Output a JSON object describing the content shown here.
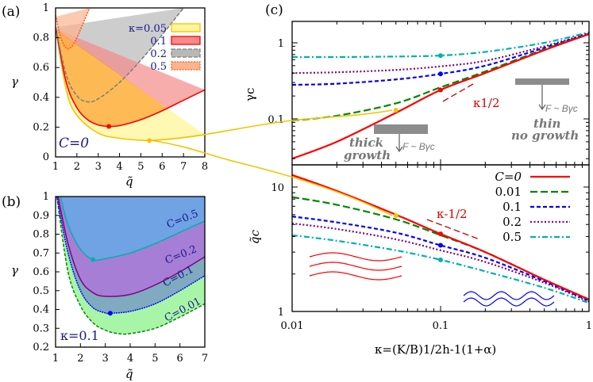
{
  "panels": {
    "a": "(a)",
    "b": "(b)",
    "c": "(c)"
  },
  "chart_data": [
    {
      "type": "area",
      "panel": "(a)",
      "xlabel": "q̃",
      "ylabel": "γ",
      "xlim": [
        1,
        8
      ],
      "ylim": [
        0,
        1
      ],
      "xticks": [
        "1",
        "2",
        "3",
        "4",
        "5",
        "6",
        "7",
        "8"
      ],
      "yticks": [
        "0",
        "0.2",
        "0.4",
        "0.6",
        "0.8",
        "1"
      ],
      "annotation": "C=0",
      "legend_title": "κ=",
      "legend_placement": "top-right",
      "series": [
        {
          "name": "κ=0.05",
          "color": "#f5c400",
          "fill": "#fff59a",
          "q": [
            1,
            1.5,
            2,
            3,
            4,
            5,
            5.4,
            6,
            7,
            8
          ],
          "gamma": [
            0.87,
            0.45,
            0.28,
            0.16,
            0.125,
            0.112,
            0.11,
            0.115,
            0.13,
            0.15
          ],
          "upper": [
            [
              1,
              0.85
            ],
            [
              8,
              0.15
            ]
          ],
          "minimum": [
            5.4,
            0.11
          ]
        },
        {
          "name": "0.1",
          "color": "#ff0000",
          "fill": "#f58a8a",
          "q": [
            1,
            1.5,
            2,
            2.5,
            3,
            3.5,
            4,
            5,
            6,
            7,
            8
          ],
          "gamma": [
            0.87,
            0.5,
            0.33,
            0.25,
            0.215,
            0.205,
            0.21,
            0.25,
            0.31,
            0.38,
            0.45
          ],
          "upper": [
            [
              1,
              0.86
            ],
            [
              8,
              0.45
            ]
          ],
          "minimum": [
            3.5,
            0.205
          ]
        },
        {
          "name": "0.2",
          "color": "#808080",
          "fill": "#b8b8b8",
          "q": [
            1,
            1.5,
            2,
            2.5,
            3,
            4,
            5,
            6,
            7
          ],
          "gamma": [
            0.87,
            0.55,
            0.41,
            0.37,
            0.39,
            0.5,
            0.65,
            0.82,
            1.0
          ],
          "upper": [
            [
              1,
              0.87
            ],
            [
              7,
              1.0
            ]
          ]
        },
        {
          "name": "0.5",
          "color": "#ff5a1a",
          "fill": "#fbb48f",
          "q": [
            1,
            1.25,
            1.5,
            1.75,
            2,
            2.3,
            2.6
          ],
          "gamma": [
            0.95,
            0.8,
            0.73,
            0.74,
            0.8,
            0.9,
            1.0
          ],
          "upper": [
            [
              1,
              0.94
            ],
            [
              2.6,
              1.0
            ]
          ]
        }
      ]
    },
    {
      "type": "area",
      "panel": "(b)",
      "xlabel": "q̃",
      "ylabel": "γ",
      "xlim": [
        1,
        7
      ],
      "ylim": [
        0.2,
        1
      ],
      "xticks": [
        "1",
        "2",
        "3",
        "4",
        "5",
        "6",
        "7"
      ],
      "yticks": [
        "0.2",
        "0.3",
        "0.4",
        "0.5",
        "0.6",
        "0.7",
        "0.8",
        "0.9",
        "1"
      ],
      "annotation": "κ=0.1",
      "series": [
        {
          "name": "C=0.01",
          "color": "#008800",
          "fill": "#a8f5a8",
          "q": [
            1.05,
            1.5,
            2,
            2.5,
            3,
            3.5,
            4,
            5,
            6,
            7
          ],
          "gamma": [
            1,
            0.6,
            0.42,
            0.33,
            0.29,
            0.272,
            0.272,
            0.3,
            0.36,
            0.43
          ]
        },
        {
          "name": "C=0.1",
          "color": "#0000ff",
          "fill": "#7faac0",
          "q": [
            1.05,
            1.5,
            2,
            2.5,
            3,
            3.2,
            4,
            5,
            6,
            7
          ],
          "gamma": [
            1,
            0.7,
            0.5,
            0.41,
            0.382,
            0.38,
            0.39,
            0.43,
            0.5,
            0.58
          ],
          "minimum": [
            3.2,
            0.38
          ]
        },
        {
          "name": "C=0.2",
          "color": "#800080",
          "fill": "#a67ed6",
          "q": [
            1.1,
            1.5,
            2,
            2.5,
            3,
            4,
            5,
            6,
            7
          ],
          "gamma": [
            1,
            0.75,
            0.56,
            0.49,
            0.47,
            0.48,
            0.53,
            0.6,
            0.68
          ]
        },
        {
          "name": "C=0.5",
          "color": "#00b0b0",
          "fill": "#6fa3e3",
          "q": [
            1.2,
            1.5,
            2,
            2.5,
            3,
            4,
            5,
            6,
            7
          ],
          "gamma": [
            1,
            0.85,
            0.72,
            0.665,
            0.67,
            0.7,
            0.75,
            0.81,
            0.87
          ],
          "minimum": [
            2.5,
            0.665
          ]
        }
      ]
    },
    {
      "type": "line",
      "panel": "(c) top",
      "xscale": "log",
      "yscale": "log",
      "ylabel": "γc",
      "xlim": [
        0.01,
        1
      ],
      "ylim": [
        0.025,
        1.9
      ],
      "yticks": [
        "0.1",
        "1"
      ],
      "annotations": [
        "κ^1/2",
        "thick growth",
        "thin no growth",
        "F~Bγc"
      ],
      "x": [
        0.01,
        0.02,
        0.05,
        0.1,
        0.2,
        0.5,
        1
      ],
      "series": [
        {
          "name": "C=0",
          "color": "#ff0000",
          "dash": "solid",
          "values": [
            0.03,
            0.05,
            0.12,
            0.24,
            0.4,
            0.8,
            1.3
          ]
        },
        {
          "name": "0.01",
          "color": "#008800",
          "dash": "long-dash",
          "values": [
            0.095,
            0.11,
            0.16,
            0.26,
            0.42,
            0.82,
            1.3
          ]
        },
        {
          "name": "0.1",
          "color": "#0000ff",
          "dash": "short-dash",
          "values": [
            0.28,
            0.29,
            0.33,
            0.39,
            0.5,
            0.86,
            1.32
          ]
        },
        {
          "name": "0.2",
          "color": "#800080",
          "dash": "dotted",
          "values": [
            0.4,
            0.41,
            0.44,
            0.49,
            0.58,
            0.9,
            1.34
          ]
        },
        {
          "name": "0.5",
          "color": "#00b0b0",
          "dash": "dash-dot",
          "values": [
            0.65,
            0.65,
            0.66,
            0.68,
            0.76,
            1.0,
            1.38
          ]
        }
      ]
    },
    {
      "type": "line",
      "panel": "(c) bottom",
      "xscale": "log",
      "yscale": "log",
      "xlabel": "κ=(K/B)^1/2 h^-1(1+α)",
      "ylabel": "q̃c",
      "xlim": [
        0.01,
        1
      ],
      "ylim": [
        1,
        15
      ],
      "xticks": [
        "0.01",
        "0.1",
        "1"
      ],
      "yticks": [
        "1",
        "10"
      ],
      "annotations": [
        "κ^-1/2"
      ],
      "legend_placement": "top-right",
      "x": [
        0.01,
        0.02,
        0.05,
        0.1,
        0.2,
        0.5,
        1
      ],
      "series": [
        {
          "name": "C=0",
          "color": "#ff0000",
          "dash": "solid",
          "values": [
            12.5,
            9.3,
            6.0,
            4.2,
            3.0,
            1.8,
            1.25
          ]
        },
        {
          "name": "0.01",
          "color": "#008800",
          "dash": "long-dash",
          "values": [
            8.3,
            7.2,
            5.5,
            4.1,
            3.0,
            1.8,
            1.25
          ]
        },
        {
          "name": "0.1",
          "color": "#0000ff",
          "dash": "short-dash",
          "values": [
            5.8,
            5.2,
            4.3,
            3.4,
            2.7,
            1.75,
            1.22
          ]
        },
        {
          "name": "0.2",
          "color": "#800080",
          "dash": "dotted",
          "values": [
            5.1,
            4.6,
            3.8,
            3.1,
            2.5,
            1.7,
            1.2
          ]
        },
        {
          "name": "0.5",
          "color": "#00b0b0",
          "dash": "dash-dot",
          "values": [
            4.1,
            3.7,
            3.1,
            2.6,
            2.1,
            1.55,
            1.17
          ]
        }
      ]
    }
  ],
  "text": {
    "a_anno": "C=0",
    "b_anno": "κ=0.1",
    "a_legend": [
      "κ=0.05",
      "0.1",
      "0.2",
      "0.5"
    ],
    "b_labels": [
      "C=0.5",
      "C=0.2",
      "C=0.1",
      "C=0.01"
    ],
    "q_label": "q̃",
    "gamma_label": "γ",
    "gc_label": "γc",
    "qc_label": "q̃c",
    "k_half": "κ1/2",
    "k_mhalf": "κ-1/2",
    "thick": "thick",
    "growth": "growth",
    "thin": "thin",
    "no_growth": "no growth",
    "force": "F ~ Bγc",
    "c_legend": [
      "C=0",
      "0.01",
      "0.1",
      "0.2",
      "0.5"
    ],
    "c_xlabel": "κ=(K/B)1/2h-1(1+α)"
  }
}
